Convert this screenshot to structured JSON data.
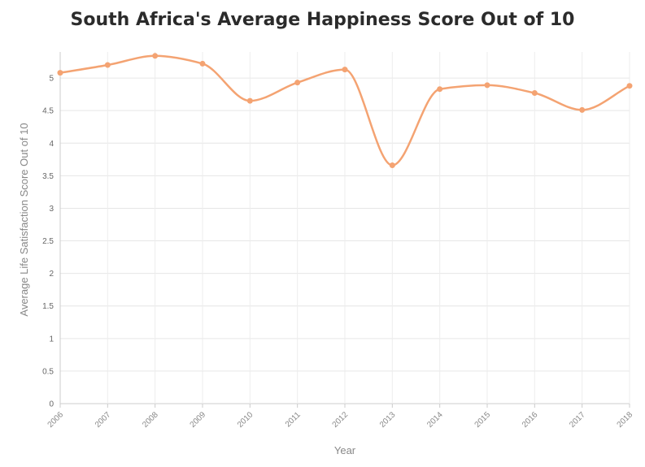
{
  "chart_data": {
    "type": "line",
    "title": "South Africa's Average Happiness Score Out of 10",
    "xlabel": "Year",
    "ylabel": "Average Life Satisfaction Score Out of 10",
    "ylim": [
      0,
      5.4
    ],
    "yticks": [
      0,
      0.5,
      1,
      1.5,
      2,
      2.5,
      3,
      3.5,
      4,
      4.5,
      5
    ],
    "ytick_labels": [
      "0",
      "0.5",
      "1",
      "1.5",
      "2",
      "2.5",
      "3",
      "3.5",
      "4",
      "4.5",
      "5"
    ],
    "categories": [
      "2006",
      "2007",
      "2008",
      "2009",
      "2010",
      "2011",
      "2012",
      "2013",
      "2014",
      "2015",
      "2016",
      "2017",
      "2018"
    ],
    "series": [
      {
        "values": [
          5.08,
          5.2,
          5.34,
          5.22,
          4.65,
          4.93,
          5.13,
          3.66,
          4.83,
          4.89,
          4.77,
          4.51,
          4.88
        ],
        "color": "#f4a372"
      }
    ],
    "grid": true,
    "curve": "smooth",
    "markers": true
  }
}
